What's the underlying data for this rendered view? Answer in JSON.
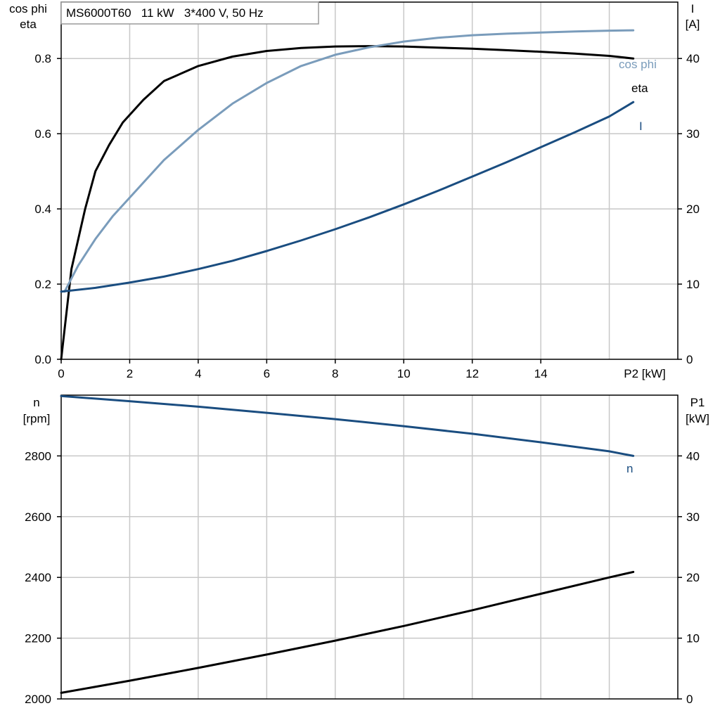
{
  "chart_data": [
    {
      "type": "line",
      "title": "MS6000T60   11 kW   3*400 V, 50 Hz",
      "xlabel": "P2 [kW]",
      "ylabel_left": [
        "cos phi",
        "eta"
      ],
      "ylabel_right": [
        "I",
        "[A]"
      ],
      "xlim": [
        0,
        18
      ],
      "ylim_left": [
        0,
        0.95
      ],
      "ylim_right": [
        0,
        47.5
      ],
      "x_ticks": [
        "0",
        "2",
        "4",
        "6",
        "8",
        "10",
        "12",
        "14"
      ],
      "y_ticks_left": [
        "0.0",
        "0.2",
        "0.4",
        "0.6",
        "0.8"
      ],
      "y_ticks_right": [
        "0",
        "10",
        "20",
        "30",
        "40"
      ],
      "grid": true,
      "series": [
        {
          "name": "eta",
          "axis": "left",
          "color": "#000000",
          "x": [
            0,
            0.3,
            0.7,
            1.0,
            1.4,
            1.8,
            2.4,
            3.0,
            4.0,
            5.0,
            6.0,
            7.0,
            8.0,
            9.0,
            10.0,
            11.0,
            12.0,
            13.0,
            14.0,
            15.0,
            16.0,
            16.7
          ],
          "y": [
            0.0,
            0.24,
            0.4,
            0.5,
            0.57,
            0.63,
            0.69,
            0.74,
            0.78,
            0.805,
            0.82,
            0.828,
            0.832,
            0.833,
            0.832,
            0.829,
            0.826,
            0.822,
            0.818,
            0.813,
            0.807,
            0.8
          ]
        },
        {
          "name": "cos phi",
          "axis": "left",
          "color": "#7a9cbb",
          "x": [
            0.1,
            0.5,
            1.0,
            1.5,
            2.0,
            3.0,
            4.0,
            5.0,
            6.0,
            7.0,
            8.0,
            9.0,
            10.0,
            11.0,
            12.0,
            13.0,
            14.0,
            15.0,
            16.0,
            16.7
          ],
          "y": [
            0.18,
            0.25,
            0.32,
            0.38,
            0.43,
            0.53,
            0.61,
            0.68,
            0.735,
            0.78,
            0.81,
            0.83,
            0.845,
            0.855,
            0.862,
            0.866,
            0.869,
            0.872,
            0.874,
            0.875
          ]
        },
        {
          "name": "I",
          "axis": "right",
          "color": "#1a4d80",
          "x": [
            0,
            1,
            2,
            3,
            4,
            5,
            6,
            7,
            8,
            9,
            10,
            11,
            12,
            13,
            14,
            15,
            16,
            16.7
          ],
          "y": [
            9.0,
            9.5,
            10.2,
            11.0,
            12.0,
            13.1,
            14.4,
            15.8,
            17.3,
            18.9,
            20.6,
            22.4,
            24.3,
            26.2,
            28.2,
            30.2,
            32.3,
            34.2
          ]
        }
      ]
    },
    {
      "type": "line",
      "xlabel": "",
      "ylabel_left": [
        "n",
        "[rpm]"
      ],
      "ylabel_right": [
        "P1",
        "[kW]"
      ],
      "xlim": [
        0,
        18
      ],
      "ylim_left": [
        2000,
        3000
      ],
      "ylim_right": [
        0,
        50
      ],
      "y_ticks_left": [
        "2000",
        "2200",
        "2400",
        "2600",
        "2800"
      ],
      "y_ticks_right": [
        "0",
        "10",
        "20",
        "30",
        "40"
      ],
      "grid": true,
      "series": [
        {
          "name": "n",
          "axis": "left",
          "color": "#1a4d80",
          "x": [
            0,
            2,
            4,
            6,
            8,
            10,
            12,
            14,
            16,
            16.7
          ],
          "y": [
            2997,
            2980,
            2962,
            2942,
            2921,
            2898,
            2873,
            2845,
            2815,
            2800
          ]
        },
        {
          "name": "P1",
          "axis": "right",
          "color": "#000000",
          "x": [
            0,
            2,
            4,
            6,
            8,
            10,
            12,
            14,
            16,
            16.7
          ],
          "y": [
            1.0,
            3.0,
            5.1,
            7.3,
            9.6,
            12.0,
            14.6,
            17.3,
            20.0,
            20.9
          ]
        }
      ]
    }
  ]
}
